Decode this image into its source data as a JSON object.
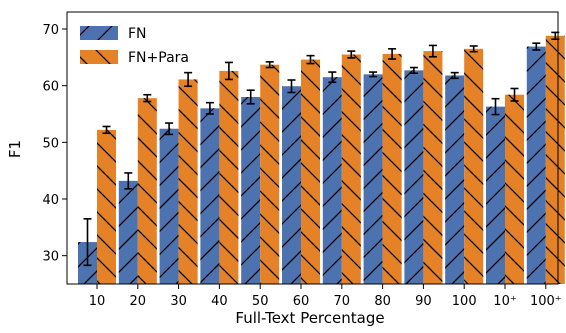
{
  "chart_data": {
    "type": "bar",
    "xlabel": "Full-Text Percentage",
    "ylabel": "F1",
    "ylim": [
      25,
      73
    ],
    "yticks": [
      30,
      40,
      50,
      60,
      70
    ],
    "categories": [
      "10",
      "20",
      "30",
      "40",
      "50",
      "60",
      "70",
      "80",
      "90",
      "100",
      "10⁺",
      "100⁺"
    ],
    "series": [
      {
        "name": "FN",
        "color": "#4c72b0",
        "hatch": "slash",
        "values": [
          32.4,
          43.2,
          52.4,
          56.0,
          58.0,
          59.9,
          61.5,
          62.0,
          62.7,
          61.8,
          56.3,
          66.9
        ],
        "errors": [
          4.1,
          1.4,
          1.0,
          1.0,
          1.2,
          1.1,
          0.9,
          0.4,
          0.5,
          0.5,
          1.4,
          0.6
        ]
      },
      {
        "name": "FN+Para",
        "color": "#e58126",
        "hatch": "backslash",
        "values": [
          52.2,
          57.8,
          61.1,
          62.6,
          63.7,
          64.6,
          65.5,
          65.6,
          66.1,
          66.5,
          58.4,
          68.8
        ],
        "errors": [
          0.6,
          0.6,
          1.2,
          1.5,
          0.5,
          0.7,
          0.6,
          0.9,
          1.0,
          0.5,
          1.1,
          0.6
        ]
      }
    ],
    "legend": "top-left"
  }
}
